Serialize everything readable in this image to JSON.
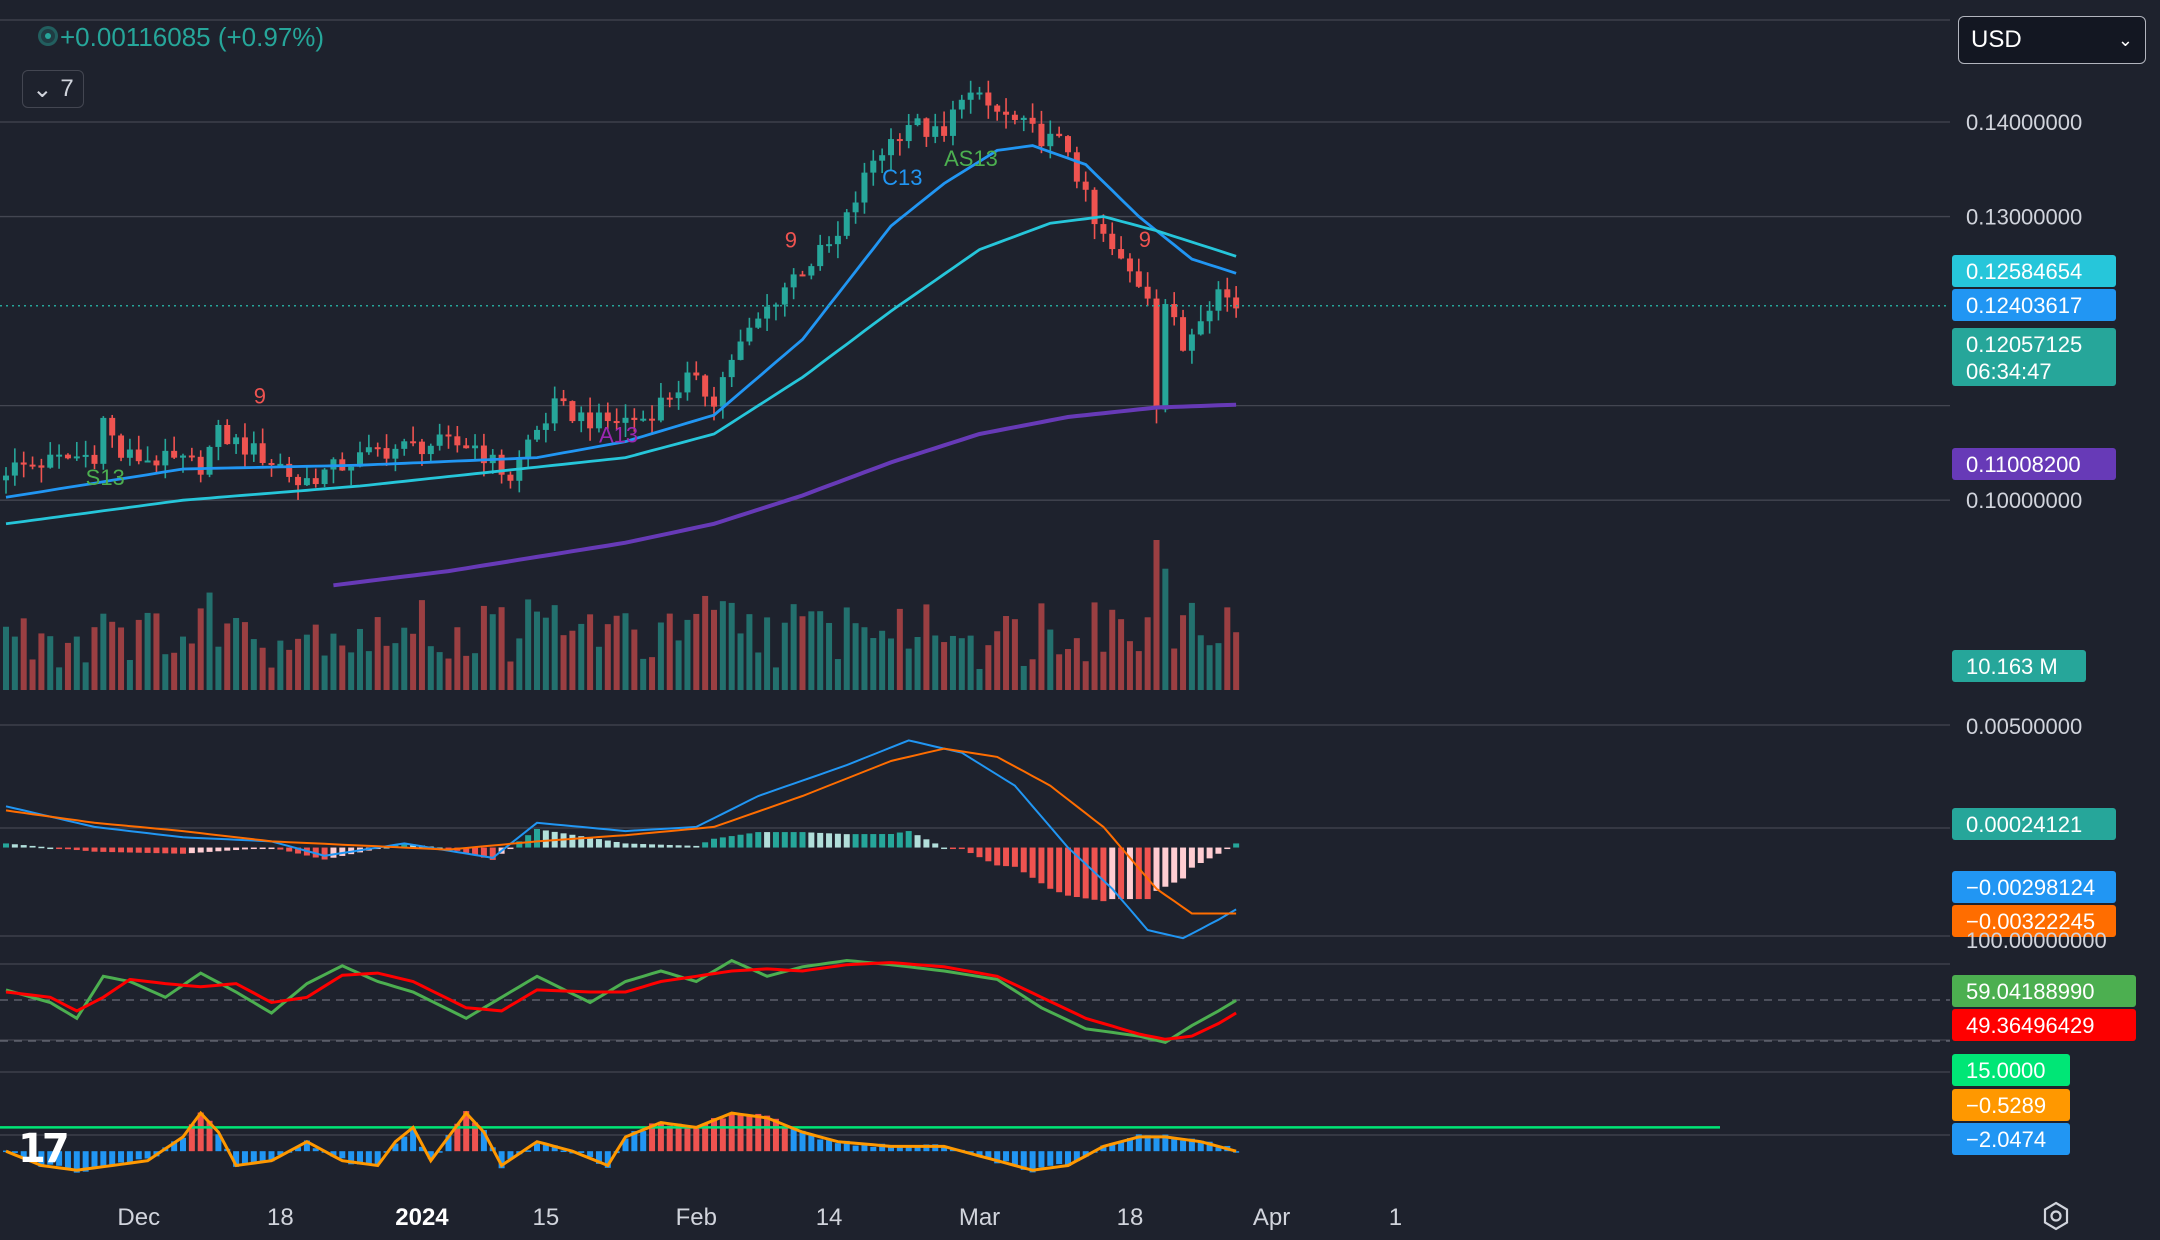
{
  "header": {
    "change_text": "+0.00116085 (+0.97%)",
    "collapse_label": "7",
    "currency": "USD"
  },
  "colors": {
    "background": "#1e222d",
    "up": "#26a69a",
    "down": "#ef5350",
    "ema_fast": "#2196f3",
    "ema_slow": "#26c6da",
    "ma_long": "#673ab7",
    "macd_line": "#2196f3",
    "signal_line": "#ff6d00",
    "stoch_k": "#4caf50",
    "stoch_d": "#ff0000",
    "osc_line": "#ff9800"
  },
  "icons": [
    "tradingview-logo-icon",
    "settings-icon",
    "chevron-down-icon",
    "status-dot-icon"
  ],
  "chart_data": [
    {
      "type": "candlestick",
      "pane": "price",
      "ylim": [
        0.0905,
        0.151
      ],
      "y_ticks": [
        "0.14000000",
        "0.13000000",
        "0.10000000"
      ],
      "x_ticks": [
        "Dec",
        "18",
        "2024",
        "15",
        "Feb",
        "14",
        "Mar",
        "18",
        "Apr",
        "1"
      ],
      "x_tick_index": [
        15,
        31,
        47,
        61,
        78,
        93,
        110,
        127,
        143,
        157
      ],
      "n_bars": 140,
      "key_points": [
        {
          "i": 0,
          "c": 0.1033
        },
        {
          "i": 10,
          "c": 0.1049
        },
        {
          "i": 11,
          "c": 0.1085
        },
        {
          "i": 13,
          "c": 0.1047
        },
        {
          "i": 22,
          "c": 0.1037
        },
        {
          "i": 24,
          "c": 0.107
        },
        {
          "i": 31,
          "c": 0.1037
        },
        {
          "i": 33,
          "c": 0.1018
        },
        {
          "i": 42,
          "c": 0.1052
        },
        {
          "i": 48,
          "c": 0.1059
        },
        {
          "i": 53,
          "c": 0.1058
        },
        {
          "i": 55,
          "c": 0.1039
        },
        {
          "i": 57,
          "c": 0.1024
        },
        {
          "i": 59,
          "c": 0.1062
        },
        {
          "i": 62,
          "c": 0.1098
        },
        {
          "i": 67,
          "c": 0.1082
        },
        {
          "i": 72,
          "c": 0.1087
        },
        {
          "i": 77,
          "c": 0.1128
        },
        {
          "i": 80,
          "c": 0.1108
        },
        {
          "i": 82,
          "c": 0.1151
        },
        {
          "i": 87,
          "c": 0.1215
        },
        {
          "i": 89,
          "c": 0.1237
        },
        {
          "i": 94,
          "c": 0.1276
        },
        {
          "i": 98,
          "c": 0.136
        },
        {
          "i": 102,
          "c": 0.14
        },
        {
          "i": 106,
          "c": 0.1382
        },
        {
          "i": 108,
          "c": 0.1433
        },
        {
          "i": 112,
          "c": 0.141
        },
        {
          "i": 116,
          "c": 0.1389
        },
        {
          "i": 120,
          "c": 0.1372
        },
        {
          "i": 123,
          "c": 0.129
        },
        {
          "i": 126,
          "c": 0.125
        },
        {
          "i": 129,
          "c": 0.122
        },
        {
          "i": 130,
          "c": 0.1105
        },
        {
          "i": 131,
          "c": 0.121
        },
        {
          "i": 133,
          "c": 0.116
        },
        {
          "i": 135,
          "c": 0.12
        },
        {
          "i": 137,
          "c": 0.1222
        },
        {
          "i": 139,
          "c": 0.1206
        }
      ],
      "overlays": [
        {
          "name": "ema-fast",
          "color": "#2196f3",
          "points": [
            [
              0,
              0.1003
            ],
            [
              20,
              0.1033
            ],
            [
              40,
              0.1037
            ],
            [
              60,
              0.1045
            ],
            [
              70,
              0.1062
            ],
            [
              80,
              0.109
            ],
            [
              90,
              0.117
            ],
            [
              100,
              0.129
            ],
            [
              106,
              0.1335
            ],
            [
              112,
              0.137
            ],
            [
              116,
              0.1375
            ],
            [
              122,
              0.1355
            ],
            [
              128,
              0.13
            ],
            [
              134,
              0.1255
            ],
            [
              139,
              0.124
            ]
          ]
        },
        {
          "name": "ema-slow",
          "color": "#26c6da",
          "points": [
            [
              0,
              0.0975
            ],
            [
              20,
              0.1
            ],
            [
              40,
              0.1015
            ],
            [
              60,
              0.1035
            ],
            [
              70,
              0.1045
            ],
            [
              80,
              0.107
            ],
            [
              90,
              0.113
            ],
            [
              100,
              0.12
            ],
            [
              110,
              0.1265
            ],
            [
              118,
              0.1293
            ],
            [
              124,
              0.13
            ],
            [
              130,
              0.1285
            ],
            [
              139,
              0.1258
            ]
          ]
        },
        {
          "name": "ma-long",
          "color": "#673ab7",
          "points": [
            [
              37,
              0.091
            ],
            [
              50,
              0.0925
            ],
            [
              60,
              0.094
            ],
            [
              70,
              0.0955
            ],
            [
              80,
              0.0975
            ],
            [
              90,
              0.1005
            ],
            [
              100,
              0.104
            ],
            [
              110,
              0.107
            ],
            [
              120,
              0.1088
            ],
            [
              130,
              0.1098
            ],
            [
              139,
              0.1101
            ]
          ]
        }
      ],
      "markers": [
        {
          "label": "S13",
          "i": 9
        },
        {
          "label": "9",
          "i": 28
        },
        {
          "label": "A13",
          "i": 67
        },
        {
          "label": "C13",
          "i": 99
        },
        {
          "label": "AS13",
          "i": 106
        },
        {
          "label": "9",
          "i": 88
        },
        {
          "label": "9",
          "i": 128
        }
      ],
      "price_labels": [
        {
          "value": "0.12584654",
          "color": "#26c6da"
        },
        {
          "value": "0.12403617",
          "color": "#2196f3"
        },
        {
          "value": "0.12057125",
          "color": "#26a69a",
          "countdown": "06:34:47"
        },
        {
          "value": "0.11008200",
          "color": "#673ab7"
        }
      ],
      "volume_label": "10.163 M"
    },
    {
      "type": "macd",
      "pane": "macd",
      "ylim": [
        -0.004,
        0.0058
      ],
      "y_ticks": [
        "0.00500000"
      ],
      "macd_points": [
        [
          0,
          0.002
        ],
        [
          10,
          0.001
        ],
        [
          20,
          0.0005
        ],
        [
          30,
          0.0003
        ],
        [
          36,
          -0.0004
        ],
        [
          45,
          0.0002
        ],
        [
          55,
          -0.0005
        ],
        [
          60,
          0.0012
        ],
        [
          70,
          0.0008
        ],
        [
          78,
          0.001
        ],
        [
          85,
          0.0025
        ],
        [
          95,
          0.004
        ],
        [
          102,
          0.0052
        ],
        [
          108,
          0.0046
        ],
        [
          114,
          0.003
        ],
        [
          120,
          0.0
        ],
        [
          125,
          -0.002
        ],
        [
          129,
          -0.004
        ],
        [
          133,
          -0.0044
        ],
        [
          137,
          -0.0035
        ],
        [
          139,
          -0.003
        ]
      ],
      "signal_points": [
        [
          0,
          0.0018
        ],
        [
          10,
          0.0012
        ],
        [
          20,
          0.0008
        ],
        [
          30,
          0.0003
        ],
        [
          40,
          0.0001
        ],
        [
          50,
          -0.0001
        ],
        [
          60,
          0.0003
        ],
        [
          70,
          0.0006
        ],
        [
          80,
          0.001
        ],
        [
          90,
          0.0025
        ],
        [
          100,
          0.0042
        ],
        [
          106,
          0.0048
        ],
        [
          112,
          0.0044
        ],
        [
          118,
          0.003
        ],
        [
          124,
          0.001
        ],
        [
          130,
          -0.002
        ],
        [
          134,
          -0.0032
        ],
        [
          139,
          -0.0032
        ]
      ],
      "value_labels": [
        {
          "value": "0.00024121",
          "color": "#26a69a"
        },
        {
          "value": "−0.00298124",
          "color": "#2196f3"
        },
        {
          "value": "−0.00322245",
          "color": "#ff6d00"
        }
      ]
    },
    {
      "type": "stochastic",
      "pane": "stoch",
      "ylim": [
        0,
        100
      ],
      "y_ticks": [
        "100.00000000"
      ],
      "k_points": [
        [
          0,
          62
        ],
        [
          5,
          50
        ],
        [
          8,
          35
        ],
        [
          11,
          75
        ],
        [
          14,
          70
        ],
        [
          18,
          55
        ],
        [
          22,
          78
        ],
        [
          26,
          60
        ],
        [
          30,
          40
        ],
        [
          34,
          68
        ],
        [
          38,
          85
        ],
        [
          42,
          70
        ],
        [
          46,
          60
        ],
        [
          52,
          35
        ],
        [
          56,
          55
        ],
        [
          60,
          75
        ],
        [
          66,
          50
        ],
        [
          70,
          70
        ],
        [
          74,
          80
        ],
        [
          78,
          70
        ],
        [
          82,
          90
        ],
        [
          86,
          75
        ],
        [
          90,
          84
        ],
        [
          95,
          90
        ],
        [
          100,
          86
        ],
        [
          106,
          80
        ],
        [
          112,
          72
        ],
        [
          117,
          45
        ],
        [
          122,
          25
        ],
        [
          128,
          18
        ],
        [
          131,
          12
        ],
        [
          134,
          28
        ],
        [
          137,
          42
        ],
        [
          139,
          52
        ]
      ],
      "d_points": [
        [
          0,
          60
        ],
        [
          5,
          55
        ],
        [
          8,
          42
        ],
        [
          11,
          55
        ],
        [
          14,
          72
        ],
        [
          18,
          68
        ],
        [
          22,
          65
        ],
        [
          26,
          68
        ],
        [
          30,
          50
        ],
        [
          34,
          55
        ],
        [
          38,
          76
        ],
        [
          42,
          78
        ],
        [
          46,
          70
        ],
        [
          52,
          45
        ],
        [
          56,
          42
        ],
        [
          60,
          62
        ],
        [
          66,
          60
        ],
        [
          70,
          60
        ],
        [
          74,
          70
        ],
        [
          78,
          75
        ],
        [
          82,
          80
        ],
        [
          86,
          82
        ],
        [
          90,
          80
        ],
        [
          95,
          86
        ],
        [
          100,
          88
        ],
        [
          106,
          84
        ],
        [
          112,
          75
        ],
        [
          117,
          55
        ],
        [
          122,
          35
        ],
        [
          128,
          20
        ],
        [
          131,
          15
        ],
        [
          134,
          18
        ],
        [
          137,
          30
        ],
        [
          139,
          40
        ]
      ],
      "value_labels": [
        {
          "value": "59.04188990",
          "color": "#4caf50"
        },
        {
          "value": "49.36496429",
          "color": "#ff0000"
        }
      ]
    },
    {
      "type": "oscillator-histogram",
      "pane": "osc",
      "ylim": [
        -5,
        16
      ],
      "hline": 5,
      "osc_points": [
        [
          0,
          0
        ],
        [
          4,
          -3
        ],
        [
          8,
          -4
        ],
        [
          12,
          -3
        ],
        [
          16,
          -2
        ],
        [
          20,
          3
        ],
        [
          22,
          8
        ],
        [
          24,
          4
        ],
        [
          26,
          -3
        ],
        [
          30,
          -2
        ],
        [
          34,
          2
        ],
        [
          38,
          -2
        ],
        [
          42,
          -3
        ],
        [
          44,
          2
        ],
        [
          46,
          5
        ],
        [
          48,
          -2
        ],
        [
          52,
          8
        ],
        [
          54,
          4
        ],
        [
          56,
          -3
        ],
        [
          60,
          2
        ],
        [
          64,
          0
        ],
        [
          68,
          -3
        ],
        [
          70,
          3
        ],
        [
          74,
          6
        ],
        [
          78,
          5
        ],
        [
          82,
          8
        ],
        [
          86,
          7
        ],
        [
          90,
          4
        ],
        [
          94,
          2
        ],
        [
          100,
          1
        ],
        [
          106,
          1
        ],
        [
          112,
          -2
        ],
        [
          116,
          -4
        ],
        [
          120,
          -3
        ],
        [
          124,
          1
        ],
        [
          128,
          3
        ],
        [
          131,
          3
        ],
        [
          135,
          2
        ],
        [
          139,
          0
        ]
      ],
      "value_labels": [
        {
          "value": "15.0000",
          "color": "#00e676"
        },
        {
          "value": "−0.5289",
          "color": "#ff9800"
        },
        {
          "value": "−2.0474",
          "color": "#2196f3"
        }
      ]
    }
  ]
}
